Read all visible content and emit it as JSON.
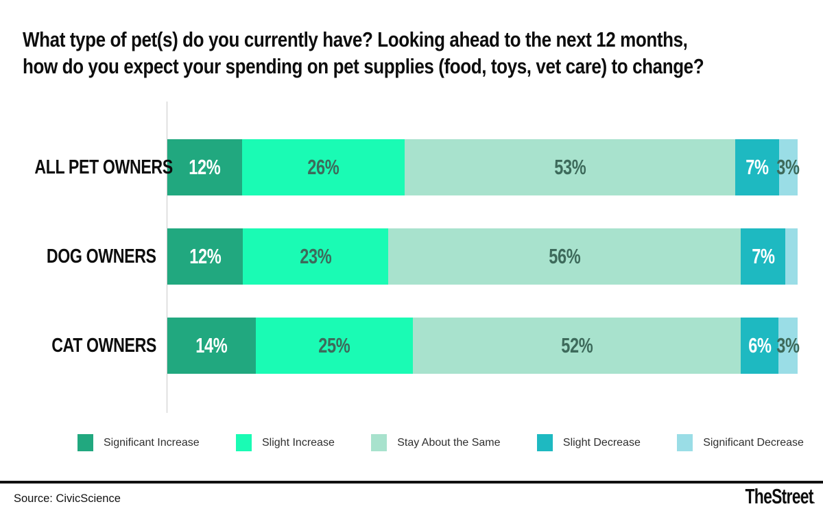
{
  "header": {
    "title_line1": "What type of pet(s) do you currently have? Looking ahead to the next 12 months,",
    "title_line2": "how do you expect your spending on pet supplies (food, toys, vet care) to change?"
  },
  "chart_data": {
    "type": "bar",
    "stacked": true,
    "orientation": "horizontal",
    "title": "What type of pet(s) do you currently have? Looking ahead to the next 12 months, how do you expect your spending on pet supplies (food, toys, vet care) to change?",
    "categories": [
      "ALL PET OWNERS",
      "DOG OWNERS",
      "CAT OWNERS"
    ],
    "series": [
      {
        "name": "Significant Increase",
        "color": "#21A87F",
        "label_color": "#FFFFFF",
        "values": [
          12,
          12,
          14
        ]
      },
      {
        "name": "Slight Increase",
        "color": "#1AFBB4",
        "label_color": "#3D6A5B",
        "values": [
          26,
          23,
          25
        ]
      },
      {
        "name": "Stay About the Same",
        "color": "#A8E2CD",
        "label_color": "#3D6A5B",
        "values": [
          53,
          56,
          52
        ]
      },
      {
        "name": "Slight Decrease",
        "color": "#1EB9C1",
        "label_color": "#FFFFFF",
        "values": [
          7,
          7,
          6
        ]
      },
      {
        "name": "Significant Decrease",
        "color": "#9ADDE6",
        "label_color": "#3D6A5B",
        "values": [
          3,
          2,
          3
        ]
      }
    ],
    "data_labels": [
      [
        "12%",
        "26%",
        "53%",
        "7%",
        "3%"
      ],
      [
        "12%",
        "23%",
        "56%",
        "7%",
        ""
      ],
      [
        "14%",
        "25%",
        "52%",
        "6%",
        "3%"
      ]
    ],
    "xlim": [
      0,
      100
    ],
    "grid": false,
    "legend_position": "bottom"
  },
  "footer": {
    "source": "Source: CivicScience",
    "brand": "TheStreet",
    "brand_mark": "."
  },
  "style": {
    "axis_color": "#C9C9C9",
    "title_color": "#0D0D0D",
    "legend_text_color": "#2E2E2E"
  }
}
